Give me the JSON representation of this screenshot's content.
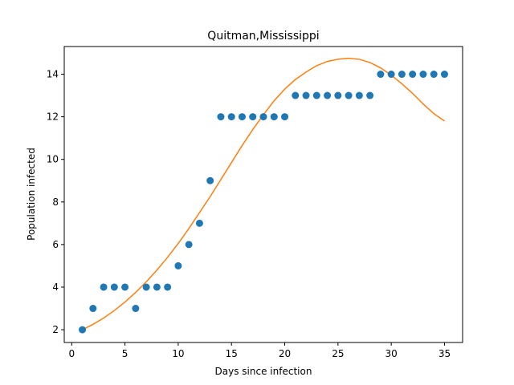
{
  "chart_data": {
    "type": "scatter",
    "title": "Quitman,Mississippi",
    "xlabel": "Days since infection",
    "ylabel": "Population infected",
    "xlim": [
      -0.7,
      36.7
    ],
    "ylim": [
      1.4,
      15.3
    ],
    "xticks": [
      0,
      5,
      10,
      15,
      20,
      25,
      30,
      35
    ],
    "yticks": [
      2,
      4,
      6,
      8,
      10,
      12,
      14
    ],
    "grid": false,
    "series": [
      {
        "kind": "scatter",
        "color": "#1f77b4",
        "x": [
          1,
          2,
          3,
          4,
          5,
          6,
          7,
          8,
          9,
          10,
          11,
          12,
          13,
          14,
          15,
          16,
          17,
          18,
          19,
          20,
          21,
          22,
          23,
          24,
          25,
          26,
          27,
          28,
          29,
          30,
          31,
          32,
          33,
          34,
          35
        ],
        "y": [
          2,
          3,
          4,
          4,
          4,
          3,
          4,
          4,
          4,
          5,
          6,
          7,
          9,
          12,
          12,
          12,
          12,
          12,
          12,
          12,
          13,
          13,
          13,
          13,
          13,
          13,
          13,
          13,
          14,
          14,
          14,
          14,
          14,
          14,
          14
        ]
      },
      {
        "kind": "line",
        "color": "#ff7f0e",
        "x": [
          1,
          2,
          3,
          4,
          5,
          6,
          7,
          8,
          9,
          10,
          11,
          12,
          13,
          14,
          15,
          16,
          17,
          18,
          19,
          20,
          21,
          22,
          23,
          24,
          25,
          26,
          27,
          28,
          29,
          30,
          31,
          32,
          33,
          34,
          35
        ],
        "y": [
          2.0,
          2.25,
          2.55,
          2.9,
          3.3,
          3.75,
          4.25,
          4.8,
          5.4,
          6.05,
          6.75,
          7.5,
          8.25,
          9.05,
          9.85,
          10.65,
          11.4,
          12.1,
          12.75,
          13.3,
          13.75,
          14.1,
          14.4,
          14.6,
          14.7,
          14.75,
          14.7,
          14.55,
          14.3,
          13.95,
          13.55,
          13.1,
          12.6,
          12.15,
          11.8
        ]
      }
    ]
  }
}
